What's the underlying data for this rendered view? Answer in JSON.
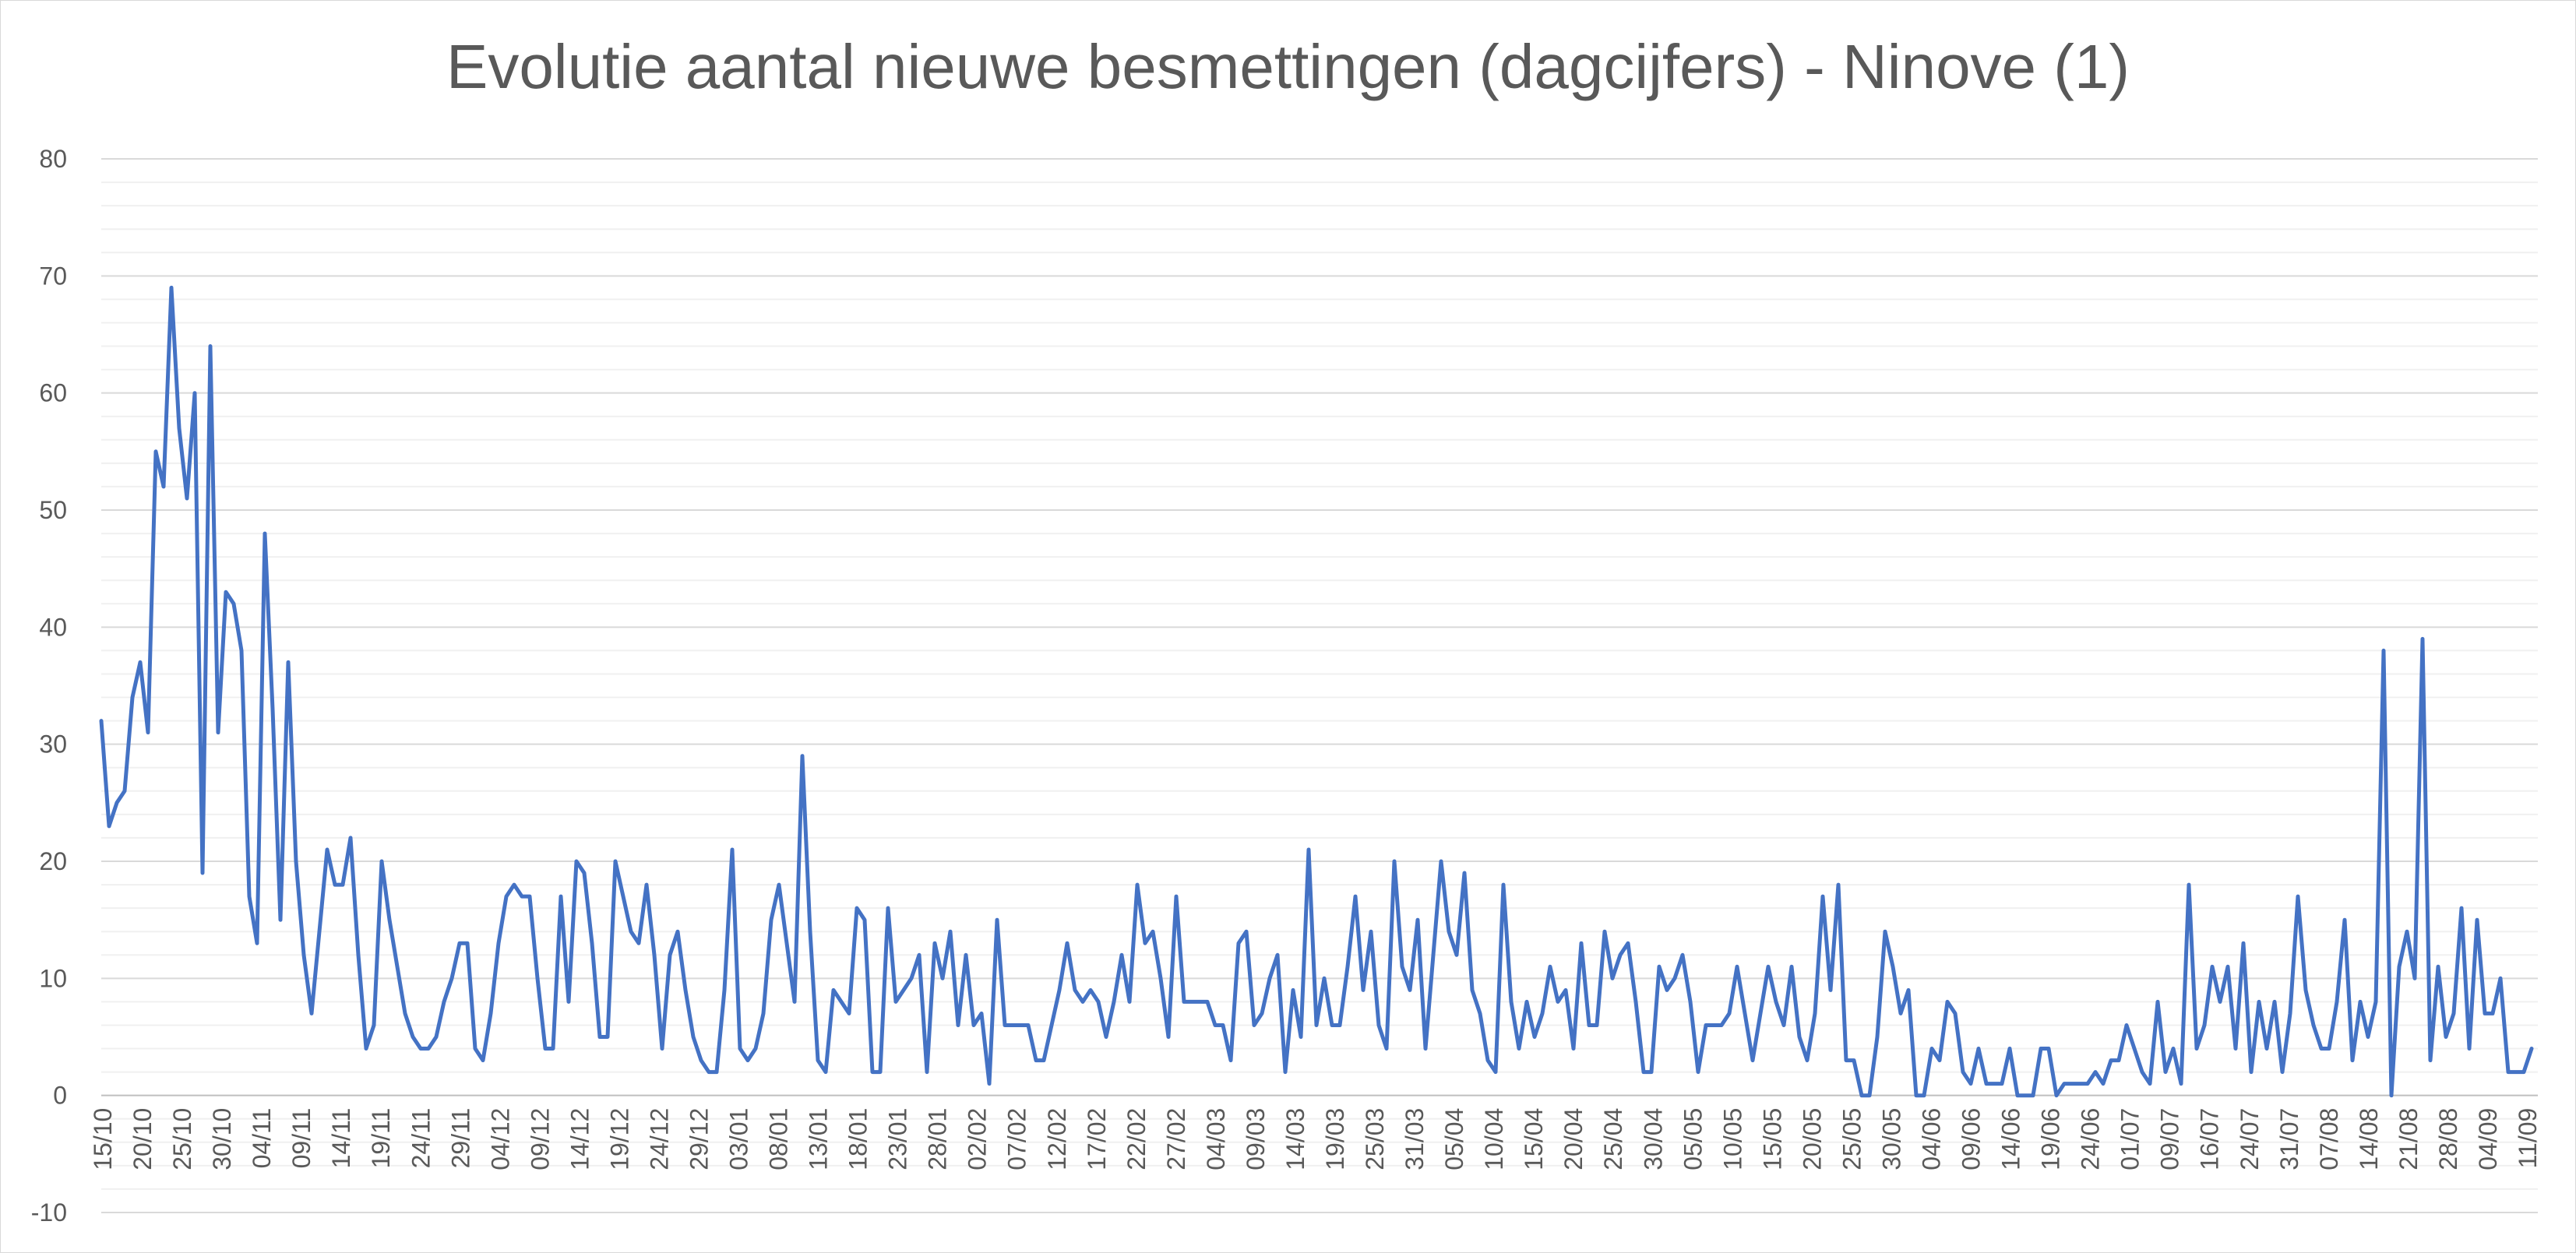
{
  "chart_data": {
    "type": "line",
    "title": "Evolutie aantal nieuwe besmettingen (dagcijfers) - Ninove (1)",
    "xlabel": "",
    "ylabel": "",
    "ylim": [
      -10,
      80
    ],
    "y_ticks": [
      -10,
      0,
      10,
      20,
      30,
      40,
      50,
      60,
      70,
      80
    ],
    "grid": true,
    "minor_grid": true,
    "legend": "none",
    "line_color": "#4472c4",
    "x_tick_labels": [
      "15/10",
      "20/10",
      "25/10",
      "30/10",
      "04/11",
      "09/11",
      "14/11",
      "19/11",
      "24/11",
      "29/11",
      "04/12",
      "09/12",
      "14/12",
      "19/12",
      "24/12",
      "29/12",
      "03/01",
      "08/01",
      "13/01",
      "18/01",
      "23/01",
      "28/01",
      "02/02",
      "07/02",
      "12/02",
      "17/02",
      "22/02",
      "27/02",
      "04/03",
      "09/03",
      "14/03",
      "19/03",
      "25/03",
      "31/03",
      "05/04",
      "10/04",
      "15/04",
      "20/04",
      "25/04",
      "30/04",
      "05/05",
      "10/05",
      "15/05",
      "20/05",
      "25/05",
      "30/05",
      "04/06",
      "09/06",
      "14/06",
      "19/06",
      "24/06",
      "01/07",
      "09/07",
      "16/07",
      "24/07",
      "31/07",
      "07/08",
      "14/08",
      "21/08",
      "28/08",
      "04/09",
      "11/09"
    ],
    "series": [
      {
        "values": [
          32,
          23,
          25,
          26,
          34,
          37,
          31,
          55,
          52,
          69,
          57,
          51,
          60,
          19,
          64,
          31,
          43,
          42,
          38,
          17,
          13,
          48,
          33,
          15,
          37,
          20,
          12,
          7,
          14,
          21,
          18,
          18,
          22,
          12,
          4,
          6,
          20,
          15,
          11,
          7,
          5,
          4,
          4,
          5,
          8,
          10,
          13,
          13,
          4,
          3,
          7,
          13,
          17,
          18,
          17,
          17,
          10,
          4,
          4,
          17,
          8,
          20,
          19,
          13,
          5,
          5,
          20,
          17,
          14,
          13,
          18,
          12,
          4,
          12,
          14,
          9,
          5,
          3,
          2,
          2,
          9,
          21,
          4,
          3,
          4,
          7,
          15,
          18,
          13,
          8,
          29,
          14,
          3,
          2,
          9,
          8,
          7,
          16,
          15,
          2,
          2,
          16,
          8,
          9,
          10,
          12,
          2,
          13,
          10,
          14,
          6,
          12,
          6,
          7,
          1,
          15,
          6,
          6,
          6,
          6,
          3,
          3,
          6,
          9,
          13,
          9,
          8,
          9,
          8,
          5,
          8,
          12,
          8,
          18,
          13,
          14,
          10,
          5,
          17,
          8,
          8,
          8,
          8,
          6,
          6,
          3,
          13,
          14,
          6,
          7,
          10,
          12,
          2,
          9,
          5,
          21,
          6,
          10,
          6,
          6,
          11,
          17,
          9,
          14,
          6,
          4,
          20,
          11,
          9,
          15,
          4,
          12,
          20,
          14,
          12,
          19,
          9,
          7,
          3,
          2,
          18,
          8,
          4,
          8,
          5,
          7,
          11,
          8,
          9,
          4,
          13,
          6,
          6,
          14,
          10,
          12,
          13,
          8,
          2,
          2,
          11,
          9,
          10,
          12,
          8,
          2,
          6,
          6,
          6,
          7,
          11,
          7,
          3,
          7,
          11,
          8,
          6,
          11,
          5,
          3,
          7,
          17,
          9,
          18,
          3,
          3,
          0,
          0,
          5,
          14,
          11,
          7,
          9,
          0,
          0,
          4,
          3,
          8,
          7,
          2,
          1,
          4,
          1,
          1,
          1,
          4,
          0,
          0,
          0,
          4,
          4,
          0,
          1,
          1,
          1,
          1,
          2,
          1,
          3,
          3,
          6,
          4,
          2,
          1,
          8,
          2,
          4,
          1,
          18,
          4,
          6,
          11,
          8,
          11,
          4,
          13,
          2,
          8,
          4,
          8,
          2,
          7,
          17,
          9,
          6,
          4,
          4,
          8,
          15,
          3,
          8,
          5,
          8,
          38,
          0,
          11,
          14,
          10,
          39,
          3,
          11,
          5,
          7,
          16,
          4,
          15,
          7,
          7,
          10,
          2,
          2,
          2,
          4
        ]
      }
    ]
  }
}
